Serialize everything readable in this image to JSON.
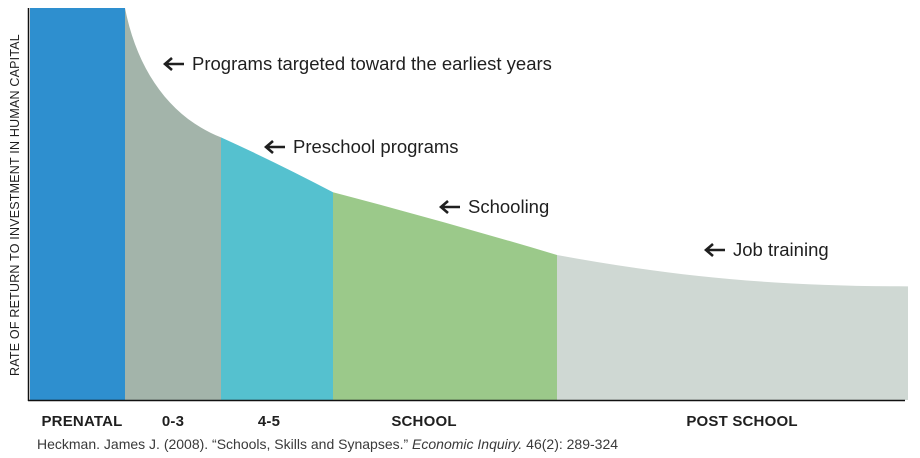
{
  "chart_data": {
    "type": "area",
    "title": "",
    "xlabel": "",
    "ylabel": "RATE OF RETURN TO INVESTMENT IN HUMAN CAPITAL",
    "categories": [
      "PRENATAL",
      "0-3",
      "4-5",
      "SCHOOL",
      "POST SCHOOL"
    ],
    "segments": [
      {
        "label": "PRENATAL",
        "color": "#2e8fcf",
        "curve_from": 1.0,
        "curve_to": 1.0
      },
      {
        "label": "0-3",
        "color": "#a3b4aa",
        "curve_from": 1.0,
        "curve_to": 0.67
      },
      {
        "label": "4-5",
        "color": "#55c1cf",
        "curve_from": 0.67,
        "curve_to": 0.53
      },
      {
        "label": "SCHOOL",
        "color": "#9bc98a",
        "curve_from": 0.53,
        "curve_to": 0.37
      },
      {
        "label": "POST SCHOOL",
        "color": "#cfd8d3",
        "curve_from": 0.37,
        "curve_to": 0.29
      }
    ],
    "annotations": [
      {
        "text": "Programs targeted toward the earliest years"
      },
      {
        "text": "Preschool programs"
      },
      {
        "text": "Schooling"
      },
      {
        "text": "Job training"
      }
    ],
    "grid": false,
    "legend": "none"
  },
  "source": {
    "prefix": "Heckman. James J. (2008). “Schools, Skills and Synapses.” ",
    "journal": "Economic Inquiry.",
    "suffix": " 46(2): 289-324"
  }
}
